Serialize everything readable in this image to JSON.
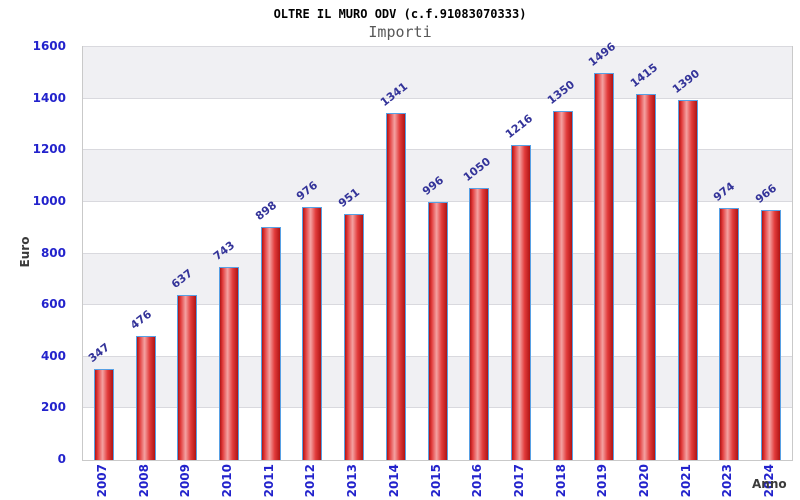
{
  "page": {
    "title": "OLTRE IL MURO ODV (c.f.91083070333)",
    "subtitle": "Importi"
  },
  "chart_data": {
    "type": "bar",
    "title": "OLTRE IL MURO ODV (c.f.91083070333)",
    "subtitle": "Importi",
    "xlabel": "Anno",
    "ylabel": "Euro",
    "categories": [
      "2007",
      "2008",
      "2009",
      "2010",
      "2011",
      "2012",
      "2013",
      "2014",
      "2015",
      "2016",
      "2017",
      "2018",
      "2019",
      "2020",
      "2021",
      "2023",
      "2024"
    ],
    "values": [
      347,
      476,
      637,
      743,
      898,
      976,
      951,
      1341,
      996,
      1050,
      1216,
      1350,
      1496,
      1415,
      1390,
      974,
      966
    ],
    "ylim": [
      0,
      1600
    ],
    "ytick_step": 200,
    "yticks": [
      0,
      200,
      400,
      600,
      800,
      1000,
      1200,
      1400,
      1600
    ],
    "grid": true,
    "band_shading": true,
    "legend": "none",
    "colors": {
      "bar_dark": "#b01414",
      "bar_mid": "#e23c3c",
      "bar_light": "#f4a2a2",
      "bar_border": "#57a0e4",
      "axis_tick_label": "#2323cc",
      "value_label": "#333399",
      "axis_title": "#3a3a3a",
      "band_gray": "#f0f0f3",
      "band_white": "#ffffff",
      "gridline": "#d9d9de",
      "plot_border": "#c9c9c9",
      "title_color": "#000000",
      "subtitle_color": "#585858"
    }
  }
}
